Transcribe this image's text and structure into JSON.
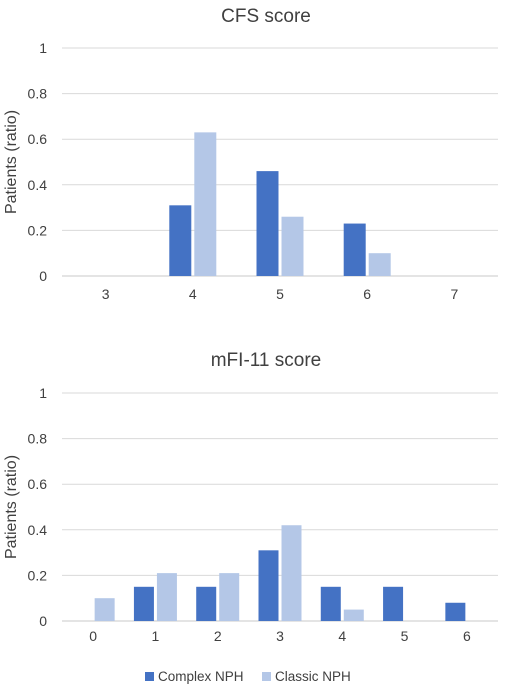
{
  "colors": {
    "complex": "#4472c4",
    "classic": "#b4c7e7"
  },
  "legend": {
    "complex_label": "Complex NPH",
    "classic_label": "Classic NPH",
    "placement": "bottom"
  },
  "chart_data": [
    {
      "type": "bar",
      "title": "CFS score",
      "xlabel": "",
      "ylabel": "Patients (ratio)",
      "ylim": [
        0,
        1
      ],
      "yticks": [
        "0",
        "0.2",
        "0.4",
        "0.6",
        "0.8",
        "1"
      ],
      "grid": true,
      "categories": [
        "3",
        "4",
        "5",
        "6",
        "7"
      ],
      "series": [
        {
          "name": "Complex NPH",
          "values": [
            0,
            0.31,
            0.46,
            0.23,
            0
          ]
        },
        {
          "name": "Classic NPH",
          "values": [
            0,
            0.63,
            0.26,
            0.1,
            0
          ]
        }
      ]
    },
    {
      "type": "bar",
      "title": "mFI-11 score",
      "xlabel": "",
      "ylabel": "Patients (ratio)",
      "ylim": [
        0,
        1
      ],
      "yticks": [
        "0",
        "0.2",
        "0.4",
        "0.6",
        "0.8",
        "1"
      ],
      "grid": true,
      "categories": [
        "0",
        "1",
        "2",
        "3",
        "4",
        "5",
        "6"
      ],
      "series": [
        {
          "name": "Complex NPH",
          "values": [
            0,
            0.15,
            0.15,
            0.31,
            0.15,
            0.15,
            0.08
          ]
        },
        {
          "name": "Classic NPH",
          "values": [
            0.1,
            0.21,
            0.21,
            0.42,
            0.05,
            0,
            0
          ]
        }
      ]
    }
  ]
}
